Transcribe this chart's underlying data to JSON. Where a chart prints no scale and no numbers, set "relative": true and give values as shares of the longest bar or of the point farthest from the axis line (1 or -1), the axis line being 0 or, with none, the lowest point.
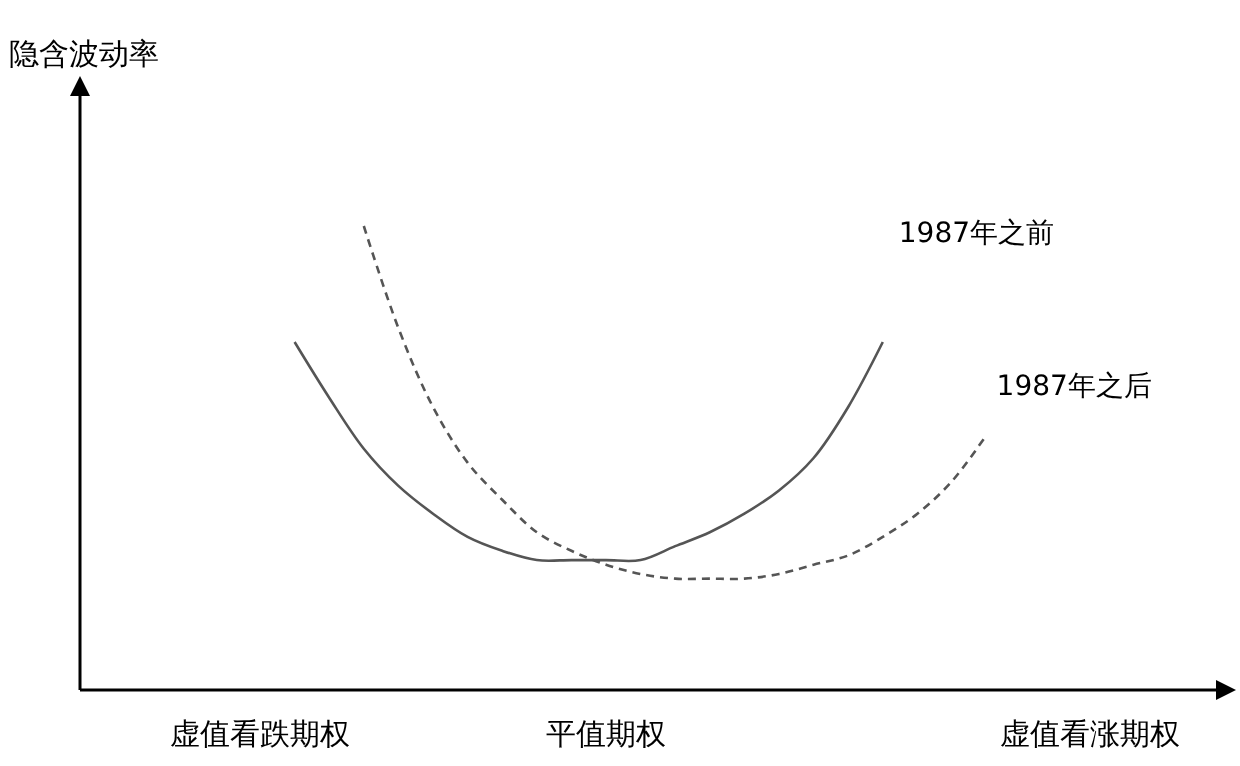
{
  "chart_data": {
    "type": "line",
    "relative": true,
    "xlabel": null,
    "annotations": [
      "隐含波动率"
    ],
    "categories": [
      null,
      null,
      null,
      null,
      null,
      "虚值看跌期权",
      null,
      null,
      null,
      null,
      null,
      null,
      null,
      null,
      null,
      "平值期权",
      null,
      null,
      null,
      null,
      null,
      null,
      null,
      null,
      null,
      null,
      null,
      null,
      null,
      "虚值看涨期权",
      null,
      null,
      null,
      null
    ],
    "series": [
      {
        "name": "1987年之前",
        "color": "#555555",
        "line_style": "solid",
        "values": [
          null,
          null,
          null,
          null,
          null,
          null,
          0.75,
          0.63,
          0.52,
          0.44,
          0.38,
          0.33,
          0.3,
          0.28,
          0.28,
          0.28,
          0.28,
          0.31,
          0.34,
          0.38,
          0.43,
          0.5,
          0.61,
          0.75,
          null,
          null,
          null,
          null,
          null,
          null,
          null,
          null,
          null,
          null
        ]
      },
      {
        "name": "1987年之后",
        "color": "#555555",
        "line_style": "dashed",
        "values": [
          null,
          null,
          null,
          null,
          null,
          null,
          null,
          null,
          1.0,
          0.78,
          0.61,
          0.49,
          0.41,
          0.34,
          0.3,
          0.27,
          0.25,
          0.24,
          0.24,
          0.24,
          0.25,
          0.27,
          0.29,
          0.33,
          0.38,
          0.45,
          0.55,
          null,
          null,
          null,
          null,
          null,
          null,
          null
        ]
      }
    ]
  }
}
